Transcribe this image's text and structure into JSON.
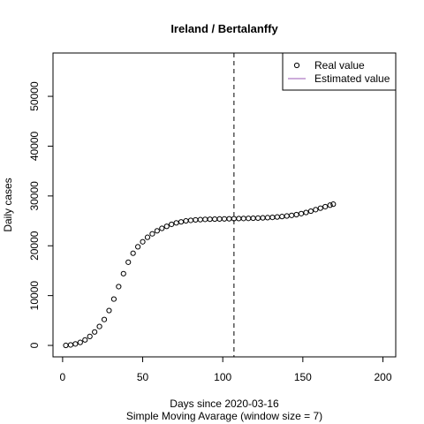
{
  "chart_data": {
    "type": "scatter",
    "title": "Ireland / Bertalanffy",
    "xlabel": "Days since 2020-03-16",
    "subtitle": "Simple Moving Avarage (window size = 7)",
    "ylabel": "Daily cases",
    "xlim": [
      -6,
      208
    ],
    "ylim": [
      -2300,
      58700
    ],
    "x_ticks": [
      0,
      50,
      100,
      150,
      200
    ],
    "y_ticks": [
      0,
      10000,
      20000,
      30000,
      40000,
      50000
    ],
    "vline_x": 107,
    "legend": {
      "position": "top-right",
      "entries": [
        {
          "label": "Real value",
          "marker": "circle",
          "color": "#000000"
        },
        {
          "label": "Estimated value",
          "marker": "line",
          "color": "#9b59b6"
        }
      ]
    },
    "series": [
      {
        "name": "Real value",
        "color": "#000000",
        "points": [
          [
            2,
            0
          ],
          [
            5,
            100
          ],
          [
            8,
            300
          ],
          [
            11,
            600
          ],
          [
            14,
            1100
          ],
          [
            17,
            1800
          ],
          [
            20,
            2700
          ],
          [
            23,
            3800
          ],
          [
            26,
            5200
          ],
          [
            29,
            7000
          ],
          [
            32,
            9300
          ],
          [
            35,
            11800
          ],
          [
            38,
            14400
          ],
          [
            41,
            16700
          ],
          [
            44,
            18500
          ],
          [
            47,
            19800
          ],
          [
            50,
            20800
          ],
          [
            53,
            21700
          ],
          [
            56,
            22400
          ],
          [
            59,
            23000
          ],
          [
            62,
            23500
          ],
          [
            65,
            23900
          ],
          [
            68,
            24300
          ],
          [
            71,
            24600
          ],
          [
            74,
            24800
          ],
          [
            77,
            25000
          ],
          [
            80,
            25100
          ],
          [
            83,
            25200
          ],
          [
            86,
            25250
          ],
          [
            89,
            25300
          ],
          [
            92,
            25330
          ],
          [
            95,
            25350
          ],
          [
            98,
            25380
          ],
          [
            101,
            25400
          ],
          [
            104,
            25420
          ],
          [
            107,
            25440
          ],
          [
            110,
            25460
          ],
          [
            113,
            25480
          ],
          [
            116,
            25500
          ],
          [
            119,
            25530
          ],
          [
            122,
            25560
          ],
          [
            125,
            25600
          ],
          [
            128,
            25650
          ],
          [
            131,
            25700
          ],
          [
            134,
            25780
          ],
          [
            137,
            25870
          ],
          [
            140,
            25980
          ],
          [
            143,
            26100
          ],
          [
            146,
            26250
          ],
          [
            149,
            26450
          ],
          [
            152,
            26680
          ],
          [
            155,
            26950
          ],
          [
            158,
            27250
          ],
          [
            161,
            27550
          ],
          [
            164,
            27850
          ],
          [
            167,
            28150
          ],
          [
            169,
            28350
          ]
        ]
      }
    ]
  }
}
